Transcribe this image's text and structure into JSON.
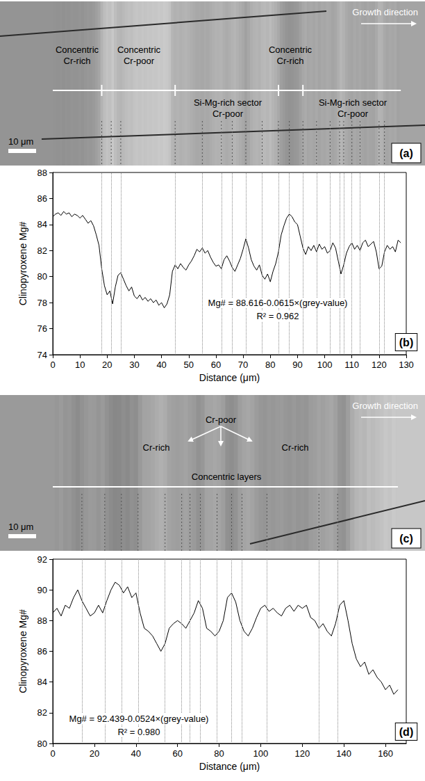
{
  "image_panels": [
    {
      "letter": "(a)",
      "scale_bar": "10 μm",
      "growth": "Growth direction",
      "labels": [
        [
          "Concentric",
          "Cr-rich"
        ],
        [
          "Concentric",
          "Cr-poor"
        ],
        [
          "Si-Mg-rich sector",
          "Cr-poor"
        ],
        [
          "Concentric",
          "Cr-rich"
        ],
        [
          "Si-Mg-rich sector",
          "Cr-poor"
        ]
      ],
      "profile_marks": [
        18,
        45,
        83,
        92
      ]
    },
    {
      "letter": "(c)",
      "scale_bar": "10 μm",
      "growth": "Growth direction",
      "labels": [
        [
          "Cr-rich"
        ],
        [
          "Cr-poor"
        ],
        [
          "Cr-rich"
        ],
        [
          "Concentric layers"
        ]
      ],
      "profile_marks": []
    }
  ],
  "chart_data": [
    {
      "type": "line",
      "panel": "(b)",
      "color": "#000000",
      "grid": false,
      "x_label": "Distance (μm)",
      "y_label": "Clinopyroxene Mg#",
      "xlim": [
        0,
        130
      ],
      "xticks": [
        0,
        10,
        20,
        30,
        40,
        50,
        60,
        70,
        80,
        90,
        100,
        110,
        120,
        130
      ],
      "ylim": [
        74,
        88
      ],
      "yticks": [
        74,
        76,
        78,
        80,
        82,
        84,
        86,
        88
      ],
      "annotations": [
        "Mg# = 88.616-0.0615×(grey-value)",
        "R² = 0.962"
      ],
      "guides_x": [
        18,
        21.5,
        25,
        45,
        55,
        62,
        66,
        71,
        77,
        83,
        87,
        92,
        97,
        102,
        105.5,
        107,
        110,
        113,
        120,
        122
      ],
      "x": [
        0,
        1,
        2,
        3,
        4,
        5,
        6,
        7,
        8,
        9,
        10,
        11,
        12,
        13,
        14,
        15,
        16,
        17,
        18,
        19,
        20,
        21,
        22,
        23,
        24,
        25,
        26,
        27,
        28,
        29,
        30,
        31,
        32,
        33,
        34,
        35,
        36,
        37,
        38,
        39,
        40,
        41,
        42,
        43,
        44,
        45,
        46,
        47,
        48,
        49,
        50,
        51,
        52,
        53,
        54,
        55,
        56,
        57,
        58,
        59,
        60,
        61,
        62,
        63,
        64,
        65,
        66,
        67,
        68,
        69,
        70,
        71,
        72,
        73,
        74,
        75,
        76,
        77,
        78,
        79,
        80,
        81,
        82,
        83,
        84,
        85,
        86,
        87,
        88,
        89,
        90,
        91,
        92,
        93,
        94,
        95,
        96,
        97,
        98,
        99,
        100,
        101,
        102,
        103,
        104,
        105,
        106,
        107,
        108,
        109,
        110,
        111,
        112,
        113,
        114,
        115,
        116,
        117,
        118,
        119,
        120,
        121,
        122,
        123,
        124,
        125,
        126,
        127,
        128
      ],
      "values": [
        84.6,
        84.8,
        84.9,
        84.7,
        85.0,
        84.8,
        84.9,
        84.6,
        84.8,
        84.7,
        84.5,
        84.7,
        84.4,
        84.1,
        84.3,
        83.9,
        83.2,
        82.4,
        80.6,
        79.3,
        78.6,
        78.9,
        77.9,
        79.2,
        80.1,
        80.3,
        79.8,
        79.3,
        78.9,
        79.2,
        78.5,
        78.3,
        78.6,
        78.2,
        78.4,
        78.1,
        78.3,
        78.0,
        78.2,
        77.8,
        78.0,
        77.6,
        77.9,
        78.6,
        80.4,
        80.9,
        80.6,
        81.0,
        80.7,
        80.5,
        80.9,
        81.2,
        81.6,
        82.1,
        81.9,
        82.2,
        81.8,
        82.0,
        81.5,
        81.1,
        80.8,
        80.9,
        80.6,
        81.3,
        81.6,
        81.2,
        80.7,
        80.4,
        80.9,
        81.4,
        82.1,
        82.9,
        82.2,
        81.3,
        80.8,
        80.5,
        80.9,
        80.1,
        79.8,
        80.2,
        79.6,
        80.4,
        81.0,
        81.9,
        83.2,
        83.9,
        84.5,
        84.8,
        84.6,
        84.2,
        84.0,
        83.1,
        82.2,
        81.7,
        82.3,
        82.0,
        82.4,
        81.9,
        82.5,
        82.1,
        82.3,
        81.8,
        82.0,
        82.6,
        82.2,
        81.2,
        80.2,
        80.9,
        81.8,
        82.3,
        82.6,
        82.1,
        82.4,
        82.0,
        82.6,
        82.8,
        82.3,
        82.5,
        82.7,
        81.9,
        80.6,
        80.8,
        81.9,
        82.4,
        82.1,
        82.3,
        81.9,
        82.8,
        82.6
      ]
    },
    {
      "type": "line",
      "panel": "(d)",
      "color": "#000000",
      "grid": false,
      "x_label": "Distance (μm)",
      "y_label": "Clinopyroxene Mg#",
      "xlim": [
        0,
        170
      ],
      "xticks": [
        0,
        20,
        40,
        60,
        80,
        100,
        120,
        140,
        160
      ],
      "ylim": [
        80,
        92
      ],
      "yticks": [
        80,
        82,
        84,
        86,
        88,
        90,
        92
      ],
      "annotations": [
        "Mg# = 92.439-0.0524×(grey-value)",
        "R² = 0.980"
      ],
      "guides_x": [
        14,
        25,
        33,
        41,
        54,
        62,
        66,
        71,
        79,
        86,
        91,
        103,
        128,
        137
      ],
      "x": [
        0,
        2,
        4,
        6,
        8,
        10,
        12,
        14,
        16,
        18,
        20,
        22,
        24,
        26,
        28,
        30,
        32,
        34,
        36,
        38,
        40,
        42,
        44,
        46,
        48,
        50,
        52,
        54,
        56,
        58,
        60,
        62,
        64,
        66,
        68,
        70,
        72,
        74,
        76,
        78,
        80,
        82,
        84,
        86,
        88,
        90,
        92,
        94,
        96,
        98,
        100,
        102,
        104,
        106,
        108,
        110,
        112,
        114,
        116,
        118,
        120,
        122,
        124,
        126,
        128,
        130,
        132,
        134,
        136,
        138,
        140,
        142,
        144,
        146,
        148,
        150,
        152,
        154,
        156,
        158,
        160,
        162,
        164,
        166
      ],
      "values": [
        88.5,
        88.8,
        88.3,
        89.0,
        88.8,
        89.5,
        90.0,
        89.3,
        88.8,
        88.3,
        88.5,
        89.0,
        88.5,
        89.3,
        90.0,
        90.5,
        90.3,
        89.8,
        90.2,
        89.5,
        89.8,
        88.5,
        87.5,
        87.3,
        87.0,
        86.5,
        86.0,
        86.5,
        87.5,
        87.8,
        88.0,
        87.8,
        87.5,
        88.0,
        88.5,
        89.3,
        88.8,
        87.5,
        87.3,
        87.0,
        87.3,
        88.0,
        89.5,
        89.8,
        89.2,
        88.0,
        87.3,
        87.0,
        87.5,
        88.2,
        88.8,
        89.0,
        88.6,
        88.8,
        88.5,
        88.3,
        88.8,
        89.0,
        88.6,
        89.0,
        88.8,
        89.0,
        88.2,
        88.0,
        87.5,
        87.8,
        87.3,
        87.0,
        87.8,
        89.0,
        89.3,
        88.0,
        86.5,
        85.5,
        85.0,
        85.3,
        84.5,
        84.8,
        84.3,
        84.0,
        83.5,
        83.8,
        83.2,
        83.5
      ]
    }
  ]
}
